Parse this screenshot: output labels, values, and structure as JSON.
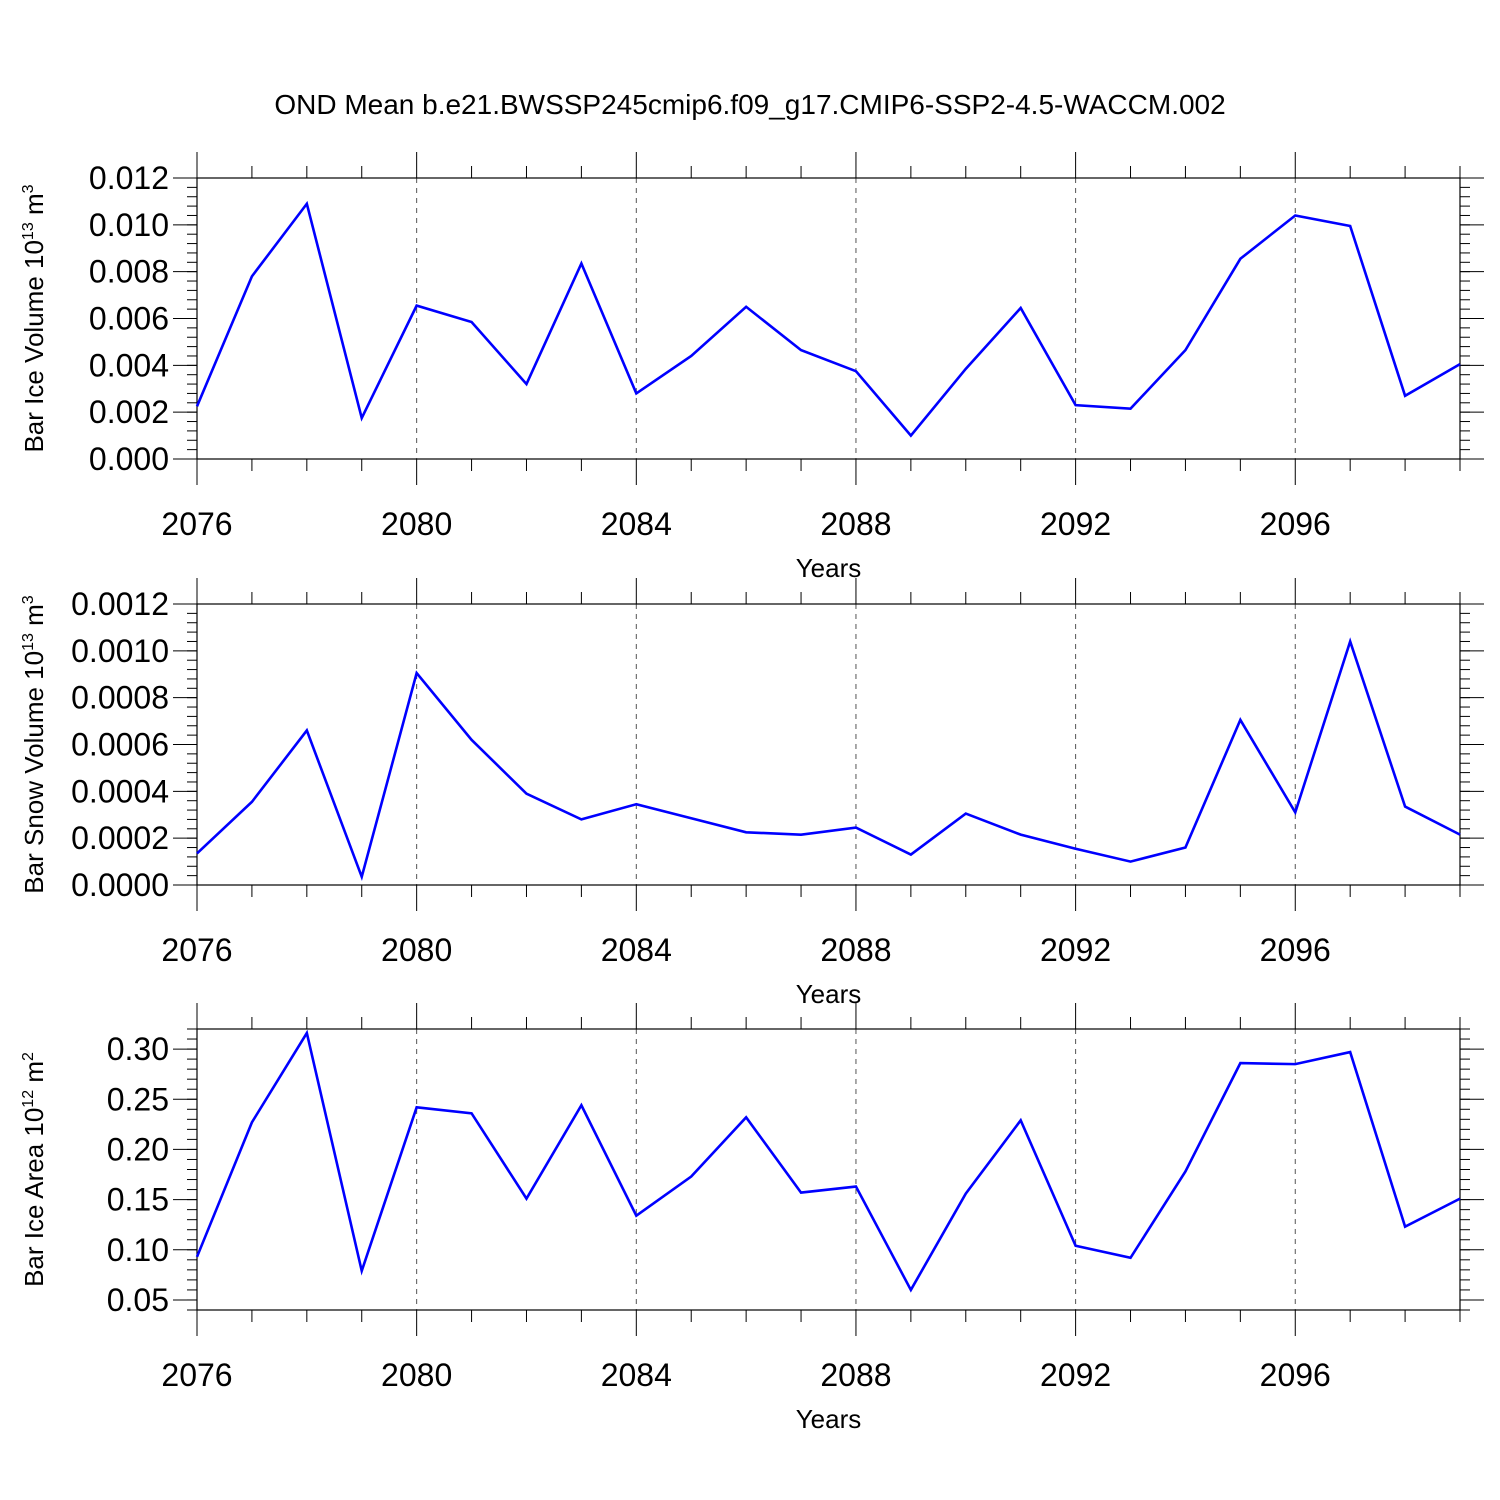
{
  "title": "OND Mean b.e21.BWSSP245cmip6.f09_g17.CMIP6-SSP2-4.5-WACCM.002",
  "colors": {
    "line": "#0000ff",
    "axis": "#000000",
    "grid": "#555555",
    "background": "#ffffff"
  },
  "chart_data": [
    {
      "type": "line",
      "xlabel": "Years",
      "ylabel": {
        "main": "Bar Ice Volume 10",
        "exponent": "13",
        "unit": " m",
        "unit_exponent": "3"
      },
      "xlim": [
        2076,
        2099
      ],
      "ylim": [
        0,
        0.012
      ],
      "x_ticks": [
        2076,
        2080,
        2084,
        2088,
        2092,
        2096
      ],
      "x_tick_labels": [
        "2076",
        "2080",
        "2084",
        "2088",
        "2092",
        "2096"
      ],
      "y_ticks": [
        0,
        0.002,
        0.004,
        0.006,
        0.008,
        0.01,
        0.012
      ],
      "y_tick_labels": [
        "0.000",
        "0.002",
        "0.004",
        "0.006",
        "0.008",
        "0.010",
        "0.012"
      ],
      "grid": "x-dashed",
      "x": [
        2076,
        2077,
        2078,
        2079,
        2080,
        2081,
        2082,
        2083,
        2084,
        2085,
        2086,
        2087,
        2088,
        2089,
        2090,
        2091,
        2092,
        2093,
        2094,
        2095,
        2096,
        2097,
        2098,
        2099
      ],
      "series": [
        {
          "values": [
            0.00225,
            0.0078,
            0.0109,
            0.00175,
            0.00655,
            0.00585,
            0.0032,
            0.00835,
            0.0028,
            0.0044,
            0.0065,
            0.00465,
            0.00375,
            0.001,
            0.00385,
            0.00645,
            0.0023,
            0.00215,
            0.00465,
            0.00855,
            0.0104,
            0.00995,
            0.0027,
            0.00405
          ]
        }
      ]
    },
    {
      "type": "line",
      "xlabel": "Years",
      "ylabel": {
        "main": "Bar Snow Volume 10",
        "exponent": "13",
        "unit": " m",
        "unit_exponent": "3"
      },
      "xlim": [
        2076,
        2099
      ],
      "ylim": [
        0,
        0.0012
      ],
      "x_ticks": [
        2076,
        2080,
        2084,
        2088,
        2092,
        2096
      ],
      "x_tick_labels": [
        "2076",
        "2080",
        "2084",
        "2088",
        "2092",
        "2096"
      ],
      "y_ticks": [
        0,
        0.0002,
        0.0004,
        0.0006,
        0.0008,
        0.001,
        0.0012
      ],
      "y_tick_labels": [
        "0.0000",
        "0.0002",
        "0.0004",
        "0.0006",
        "0.0008",
        "0.0010",
        "0.0012"
      ],
      "grid": "x-dashed",
      "x": [
        2076,
        2077,
        2078,
        2079,
        2080,
        2081,
        2082,
        2083,
        2084,
        2085,
        2086,
        2087,
        2088,
        2089,
        2090,
        2091,
        2092,
        2093,
        2094,
        2095,
        2096,
        2097,
        2098,
        2099
      ],
      "series": [
        {
          "values": [
            0.000135,
            0.000355,
            0.00066,
            3.5e-05,
            0.000905,
            0.00062,
            0.00039,
            0.00028,
            0.000345,
            0.000285,
            0.000225,
            0.000215,
            0.000245,
            0.00013,
            0.000305,
            0.000215,
            0.000155,
            0.0001,
            0.00016,
            0.000705,
            0.00031,
            0.00104,
            0.000335,
            0.000215
          ]
        }
      ]
    },
    {
      "type": "line",
      "xlabel": "Years",
      "ylabel": {
        "main": "Bar Ice Area 10",
        "exponent": "12",
        "unit": " m",
        "unit_exponent": "2"
      },
      "xlim": [
        2076,
        2099
      ],
      "ylim": [
        0.04,
        0.32
      ],
      "x_ticks": [
        2076,
        2080,
        2084,
        2088,
        2092,
        2096
      ],
      "x_tick_labels": [
        "2076",
        "2080",
        "2084",
        "2088",
        "2092",
        "2096"
      ],
      "y_ticks": [
        0.05,
        0.1,
        0.15,
        0.2,
        0.25,
        0.3
      ],
      "y_tick_labels": [
        "0.05",
        "0.10",
        "0.15",
        "0.20",
        "0.25",
        "0.30"
      ],
      "grid": "x-dashed",
      "x": [
        2076,
        2077,
        2078,
        2079,
        2080,
        2081,
        2082,
        2083,
        2084,
        2085,
        2086,
        2087,
        2088,
        2089,
        2090,
        2091,
        2092,
        2093,
        2094,
        2095,
        2096,
        2097,
        2098,
        2099
      ],
      "series": [
        {
          "values": [
            0.093,
            0.227,
            0.316,
            0.079,
            0.242,
            0.236,
            0.151,
            0.244,
            0.134,
            0.173,
            0.232,
            0.157,
            0.163,
            0.06,
            0.156,
            0.229,
            0.104,
            0.092,
            0.178,
            0.286,
            0.285,
            0.297,
            0.123,
            0.151
          ]
        }
      ]
    }
  ]
}
